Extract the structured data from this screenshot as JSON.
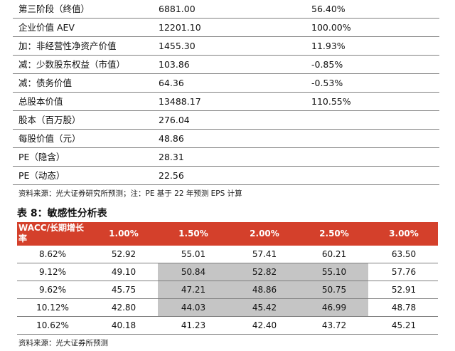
{
  "valuation_rows": [
    {
      "label": "第三阶段（终值）",
      "value": "6881.00",
      "pct": "56.40%"
    },
    {
      "label": "企业价值 AEV",
      "value": "12201.10",
      "pct": "100.00%"
    },
    {
      "label": "加：非经营性净资产价值",
      "value": "1455.30",
      "pct": "11.93%"
    },
    {
      "label": "减：少数股东权益（市值）",
      "value": "103.86",
      "pct": "-0.85%"
    },
    {
      "label": "减：债务价值",
      "value": "64.36",
      "pct": "-0.53%"
    },
    {
      "label": "总股本价值",
      "value": "13488.17",
      "pct": "110.55%"
    },
    {
      "label": "股本（百万股）",
      "value": "276.04",
      "pct": ""
    },
    {
      "label": "每股价值（元）",
      "value": "48.86",
      "pct": ""
    },
    {
      "label": "PE（隐含）",
      "value": "28.31",
      "pct": ""
    },
    {
      "label": "PE（动态）",
      "value": "22.56",
      "pct": ""
    }
  ],
  "source_note_1": "资料来源：光大证券研究所预测；注：PE 基于 22 年预测 EPS 计算",
  "table8_title": "表 8：敏感性分析表",
  "sensitivity": {
    "corner_label": "WACC/长期增长率",
    "header_color": "#d4402b",
    "shade_color": "#c5c5c5",
    "growth_rates": [
      "1.00%",
      "1.50%",
      "2.00%",
      "2.50%",
      "3.00%"
    ],
    "rows": [
      {
        "wacc": "8.62%",
        "values": [
          "52.92",
          "55.01",
          "57.41",
          "60.21",
          "63.50"
        ]
      },
      {
        "wacc": "9.12%",
        "values": [
          "49.10",
          "50.84",
          "52.82",
          "55.10",
          "57.76"
        ]
      },
      {
        "wacc": "9.62%",
        "values": [
          "45.75",
          "47.21",
          "48.86",
          "50.75",
          "52.91"
        ]
      },
      {
        "wacc": "10.12%",
        "values": [
          "42.80",
          "44.03",
          "45.42",
          "46.99",
          "48.78"
        ]
      },
      {
        "wacc": "10.62%",
        "values": [
          "40.18",
          "41.23",
          "42.40",
          "43.72",
          "45.21"
        ]
      }
    ]
  },
  "source_note_2": "资料来源：光大证券所预测"
}
